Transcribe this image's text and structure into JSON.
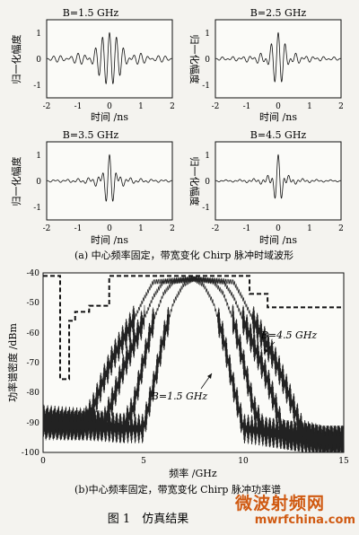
{
  "chart_data": [
    {
      "type": "line",
      "title": "B=1.5 GHz",
      "xlabel": "时间 /ns",
      "ylabel": "归一化幅度",
      "xlim": [
        -2,
        2
      ],
      "ylim": [
        -1.5,
        1.5
      ],
      "xticks": [
        "-2",
        "-1",
        "0",
        "1",
        "2"
      ],
      "yticks": [
        "1",
        "0",
        "-1"
      ],
      "bandwidth_ghz": 1.5
    },
    {
      "type": "line",
      "title": "B=2.5 GHz",
      "xlabel": "时间 /ns",
      "ylabel": "归一化幅度",
      "xlim": [
        -2,
        2
      ],
      "ylim": [
        -1.5,
        1.5
      ],
      "xticks": [
        "-2",
        "-1",
        "0",
        "1",
        "2"
      ],
      "yticks": [
        "1",
        "0",
        "-1"
      ],
      "bandwidth_ghz": 2.5
    },
    {
      "type": "line",
      "title": "B=3.5 GHz",
      "xlabel": "时间 /ns",
      "ylabel": "归一化幅度",
      "xlim": [
        -2,
        2
      ],
      "ylim": [
        -1.5,
        1.5
      ],
      "xticks": [
        "-2",
        "-1",
        "0",
        "1",
        "2"
      ],
      "yticks": [
        "1",
        "0",
        "-1"
      ],
      "bandwidth_ghz": 3.5
    },
    {
      "type": "line",
      "title": "B=4.5 GHz",
      "xlabel": "时间 /ns",
      "ylabel": "归一化幅度",
      "xlim": [
        -2,
        2
      ],
      "ylim": [
        -1.5,
        1.5
      ],
      "xticks": [
        "-2",
        "-1",
        "0",
        "1",
        "2"
      ],
      "yticks": [
        "1",
        "0",
        "-1"
      ],
      "bandwidth_ghz": 4.5
    },
    {
      "type": "line",
      "xlabel": "频率 /GHz",
      "ylabel": "功率谱密度 /dBm",
      "xlim": [
        0,
        15
      ],
      "ylim": [
        -100,
        -40
      ],
      "xticks": [
        "0",
        "5",
        "10",
        "15"
      ],
      "yticks": [
        "-40",
        "-50",
        "-60",
        "-70",
        "-80",
        "-90",
        "-100"
      ],
      "annotations": [
        "B=4.5 GHz",
        "B=1.5 GHz"
      ],
      "mask": {
        "x": [
          0,
          0.85,
          0.85,
          1.3,
          1.3,
          1.6,
          1.6,
          2.3,
          2.3,
          3.3,
          3.3,
          10.3,
          10.3,
          11.2,
          11.2,
          15
        ],
        "y": [
          -41,
          -41,
          -75.5,
          -75.5,
          -56,
          -56,
          -53,
          -53,
          -51,
          -51,
          -41,
          -41,
          -47,
          -47,
          -51.5,
          -51.5
        ]
      },
      "series": [
        {
          "bandwidth_ghz": 1.5,
          "x": [
            0,
            1,
            2,
            3,
            4,
            5,
            5.5,
            6,
            6.5,
            7,
            7.5,
            8,
            8.5,
            9,
            9.5,
            10,
            11,
            12,
            13,
            14,
            15
          ],
          "y": [
            -89,
            -89.5,
            -90,
            -91,
            -92,
            -92,
            -78,
            -62,
            -50,
            -44,
            -42,
            -44,
            -50,
            -62,
            -78,
            -92,
            -93,
            -94,
            -95,
            -96,
            -96
          ]
        },
        {
          "bandwidth_ghz": 2.5,
          "x": [
            0,
            1,
            2,
            3,
            4,
            4.5,
            5,
            5.5,
            6,
            6.5,
            7.5,
            8.5,
            9,
            9.5,
            10,
            10.5,
            11,
            12,
            13,
            14,
            15
          ],
          "y": [
            -90,
            -90.5,
            -91,
            -91.5,
            -92,
            -85,
            -70,
            -56,
            -47,
            -43,
            -42,
            -43,
            -47,
            -56,
            -70,
            -85,
            -93,
            -94,
            -95,
            -96,
            -96
          ]
        },
        {
          "bandwidth_ghz": 3.5,
          "x": [
            0,
            1,
            2,
            3,
            3.5,
            4,
            4.5,
            5,
            5.5,
            6,
            7.5,
            9,
            9.5,
            10,
            10.5,
            11,
            11.5,
            12,
            13,
            14,
            15
          ],
          "y": [
            -90,
            -91,
            -91,
            -91,
            -82,
            -72,
            -64,
            -56,
            -48,
            -43,
            -42,
            -43,
            -48,
            -56,
            -64,
            -72,
            -82,
            -94,
            -95,
            -96,
            -96
          ]
        },
        {
          "bandwidth_ghz": 4.5,
          "x": [
            0,
            1,
            2,
            2.5,
            3,
            3.5,
            4,
            4.5,
            5,
            5.5,
            7.5,
            9.5,
            10,
            10.5,
            11,
            11.5,
            12,
            12.5,
            13,
            14,
            15
          ],
          "y": [
            -91,
            -91,
            -91,
            -85,
            -76,
            -68,
            -62,
            -56,
            -49,
            -43,
            -42,
            -43,
            -49,
            -56,
            -62,
            -68,
            -76,
            -85,
            -94,
            -96,
            -96
          ]
        }
      ]
    }
  ],
  "captions": {
    "a": "(a) 中心频率固定，带宽变化 Chirp 脉冲时域波形",
    "b": "(b)中心频率固定，带宽变化 Chirp 脉冲功率谱",
    "figure": "图 1　仿真结果"
  },
  "watermark": {
    "cn": "微波射频网",
    "url": "mwrfchina.com",
    "color": "#d05a12"
  }
}
